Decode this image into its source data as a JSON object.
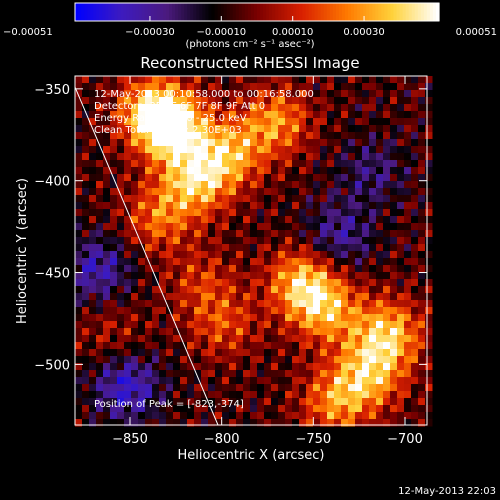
{
  "chart_data": {
    "type": "heatmap",
    "title": "Reconstructed RHESSI Image",
    "xlabel": "Heliocentric X (arcsec)",
    "ylabel": "Heliocentric Y (arcsec)",
    "xlim": [
      -880,
      -688
    ],
    "ylim": [
      -533,
      -343
    ],
    "x_ticks": [
      -850,
      -800,
      -750,
      -700
    ],
    "y_ticks": [
      -350,
      -400,
      -450,
      -500
    ],
    "x_tick_labels": [
      "−850",
      "−800",
      "−750",
      "−700"
    ],
    "y_tick_labels": [
      "−350",
      "−400",
      "−450",
      "−500"
    ],
    "colorbar": {
      "range": [
        -0.00051,
        0.00051
      ],
      "ticks": [
        -0.00051,
        -0.0003,
        -0.0001,
        0.0001,
        0.0003,
        0.00051
      ],
      "tick_labels": [
        "−0.00051",
        "−0.00030",
        "−0.00010",
        "0.00010",
        "0.00030",
        "0.00051"
      ],
      "colormap": [
        "#0000ff",
        "#3d1bbf",
        "#4b1a7f",
        "#000000",
        "#7a0000",
        "#d92000",
        "#ff7a00",
        "#ffd23a",
        "#ffffff"
      ],
      "unit_label": "(photons cm⁻² s⁻¹ asec⁻²)"
    },
    "annotations": [
      "12-May-2013 00:10:58.000 to 00:16:58.000",
      "Detectors: 3F 5F 6F 7F 8F 9F Att 0",
      "Energy Range: 12.0 - 25.0 keV",
      "Clean    Total counts: 2.30E+03"
    ],
    "peak_label": "Position of Peak = [-823,-374]",
    "limb_line": [
      [
        -880,
        -349
      ],
      [
        -802,
        -533
      ]
    ],
    "emission_regions": [
      {
        "x": -827,
        "y": -372,
        "value": 0.00051
      },
      {
        "x": -838,
        "y": -362,
        "value": 0.00045
      },
      {
        "x": -815,
        "y": -400,
        "value": 0.00042
      },
      {
        "x": -797,
        "y": -385,
        "value": 0.00036
      },
      {
        "x": -772,
        "y": -368,
        "value": 0.00034
      },
      {
        "x": -758,
        "y": -455,
        "value": 0.00041
      },
      {
        "x": -745,
        "y": -470,
        "value": 0.00036
      },
      {
        "x": -712,
        "y": -483,
        "value": 0.00043
      },
      {
        "x": -722,
        "y": -505,
        "value": 0.00038
      },
      {
        "x": -740,
        "y": -520,
        "value": 0.00032
      },
      {
        "x": -835,
        "y": -420,
        "value": 0.00028
      },
      {
        "x": -812,
        "y": -455,
        "value": 0.00018
      },
      {
        "x": -800,
        "y": -478,
        "value": 0.00022
      },
      {
        "x": -860,
        "y": -482,
        "value": 0.00012
      },
      {
        "x": -720,
        "y": -395,
        "value": -0.00018
      },
      {
        "x": -738,
        "y": -430,
        "value": -0.00024
      },
      {
        "x": -868,
        "y": -448,
        "value": -0.00028
      },
      {
        "x": -852,
        "y": -512,
        "value": -0.00033
      }
    ]
  },
  "footer_timestamp": "12-May-2013 22:03"
}
